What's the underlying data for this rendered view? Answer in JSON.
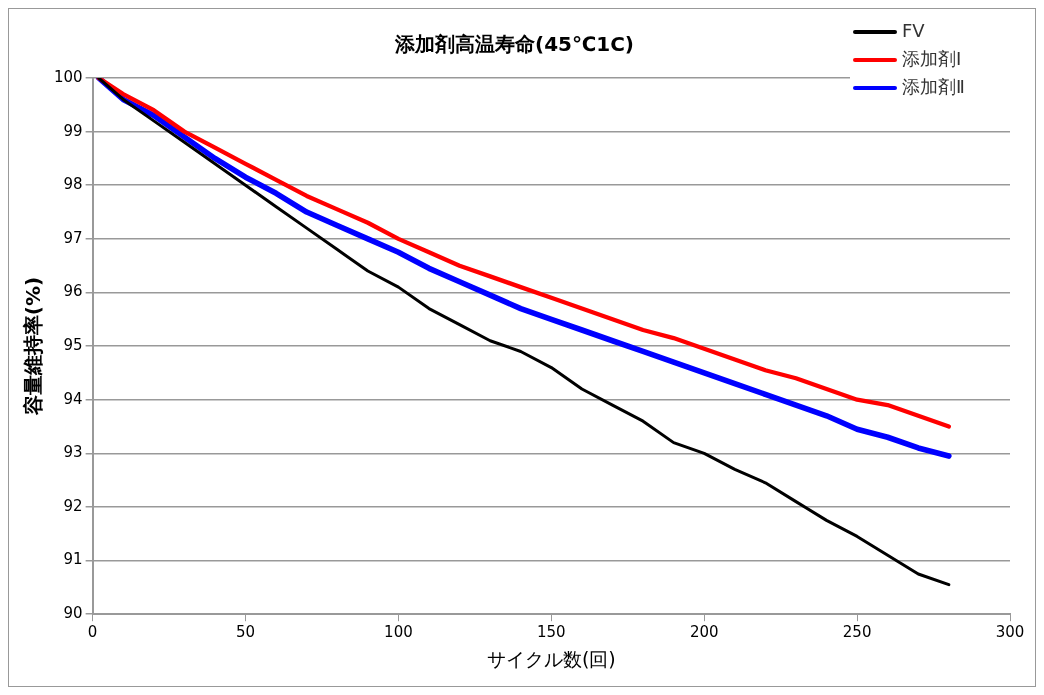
{
  "chart_data": {
    "type": "line",
    "title": "添加剤高温寿命(45℃1C)",
    "xlabel": "サイクル数(回)",
    "ylabel": "容量維持率(%)",
    "x": [
      2,
      10,
      20,
      30,
      40,
      50,
      60,
      70,
      80,
      90,
      100,
      110,
      120,
      130,
      140,
      150,
      160,
      170,
      180,
      190,
      200,
      210,
      220,
      230,
      240,
      250,
      260,
      270,
      280
    ],
    "series": [
      {
        "name": "FV",
        "color": "#000000",
        "values": [
          100,
          99.6,
          99.2,
          98.8,
          98.4,
          98.0,
          97.6,
          97.2,
          96.8,
          96.4,
          96.1,
          95.7,
          95.4,
          95.1,
          94.9,
          94.6,
          94.2,
          93.9,
          93.6,
          93.2,
          93.0,
          92.7,
          92.45,
          92.1,
          91.75,
          91.45,
          91.1,
          90.75,
          90.55
        ]
      },
      {
        "name": "添加剤Ⅰ",
        "color": "#ff0000",
        "values": [
          100,
          99.7,
          99.4,
          99.0,
          98.7,
          98.4,
          98.1,
          97.8,
          97.55,
          97.3,
          97.0,
          96.75,
          96.5,
          96.3,
          96.1,
          95.9,
          95.7,
          95.5,
          95.3,
          95.15,
          94.95,
          94.75,
          94.55,
          94.4,
          94.2,
          94.0,
          93.9,
          93.7,
          93.5
        ]
      },
      {
        "name": "添加剤Ⅱ",
        "color": "#0000ff",
        "values": [
          100,
          99.6,
          99.3,
          98.9,
          98.5,
          98.15,
          97.85,
          97.5,
          97.25,
          97.0,
          96.75,
          96.45,
          96.2,
          95.95,
          95.7,
          95.5,
          95.3,
          95.1,
          94.9,
          94.7,
          94.5,
          94.3,
          94.1,
          93.9,
          93.7,
          93.45,
          93.3,
          93.1,
          92.95
        ]
      }
    ],
    "xlim": [
      0,
      300
    ],
    "xticks": [
      0,
      50,
      100,
      150,
      200,
      250,
      300
    ],
    "ylim": [
      90,
      100
    ],
    "yticks": [
      90,
      91,
      92,
      93,
      94,
      95,
      96,
      97,
      98,
      99,
      100
    ],
    "grid": "y",
    "legend": "top right",
    "marker": "none",
    "line_style": "solid"
  }
}
